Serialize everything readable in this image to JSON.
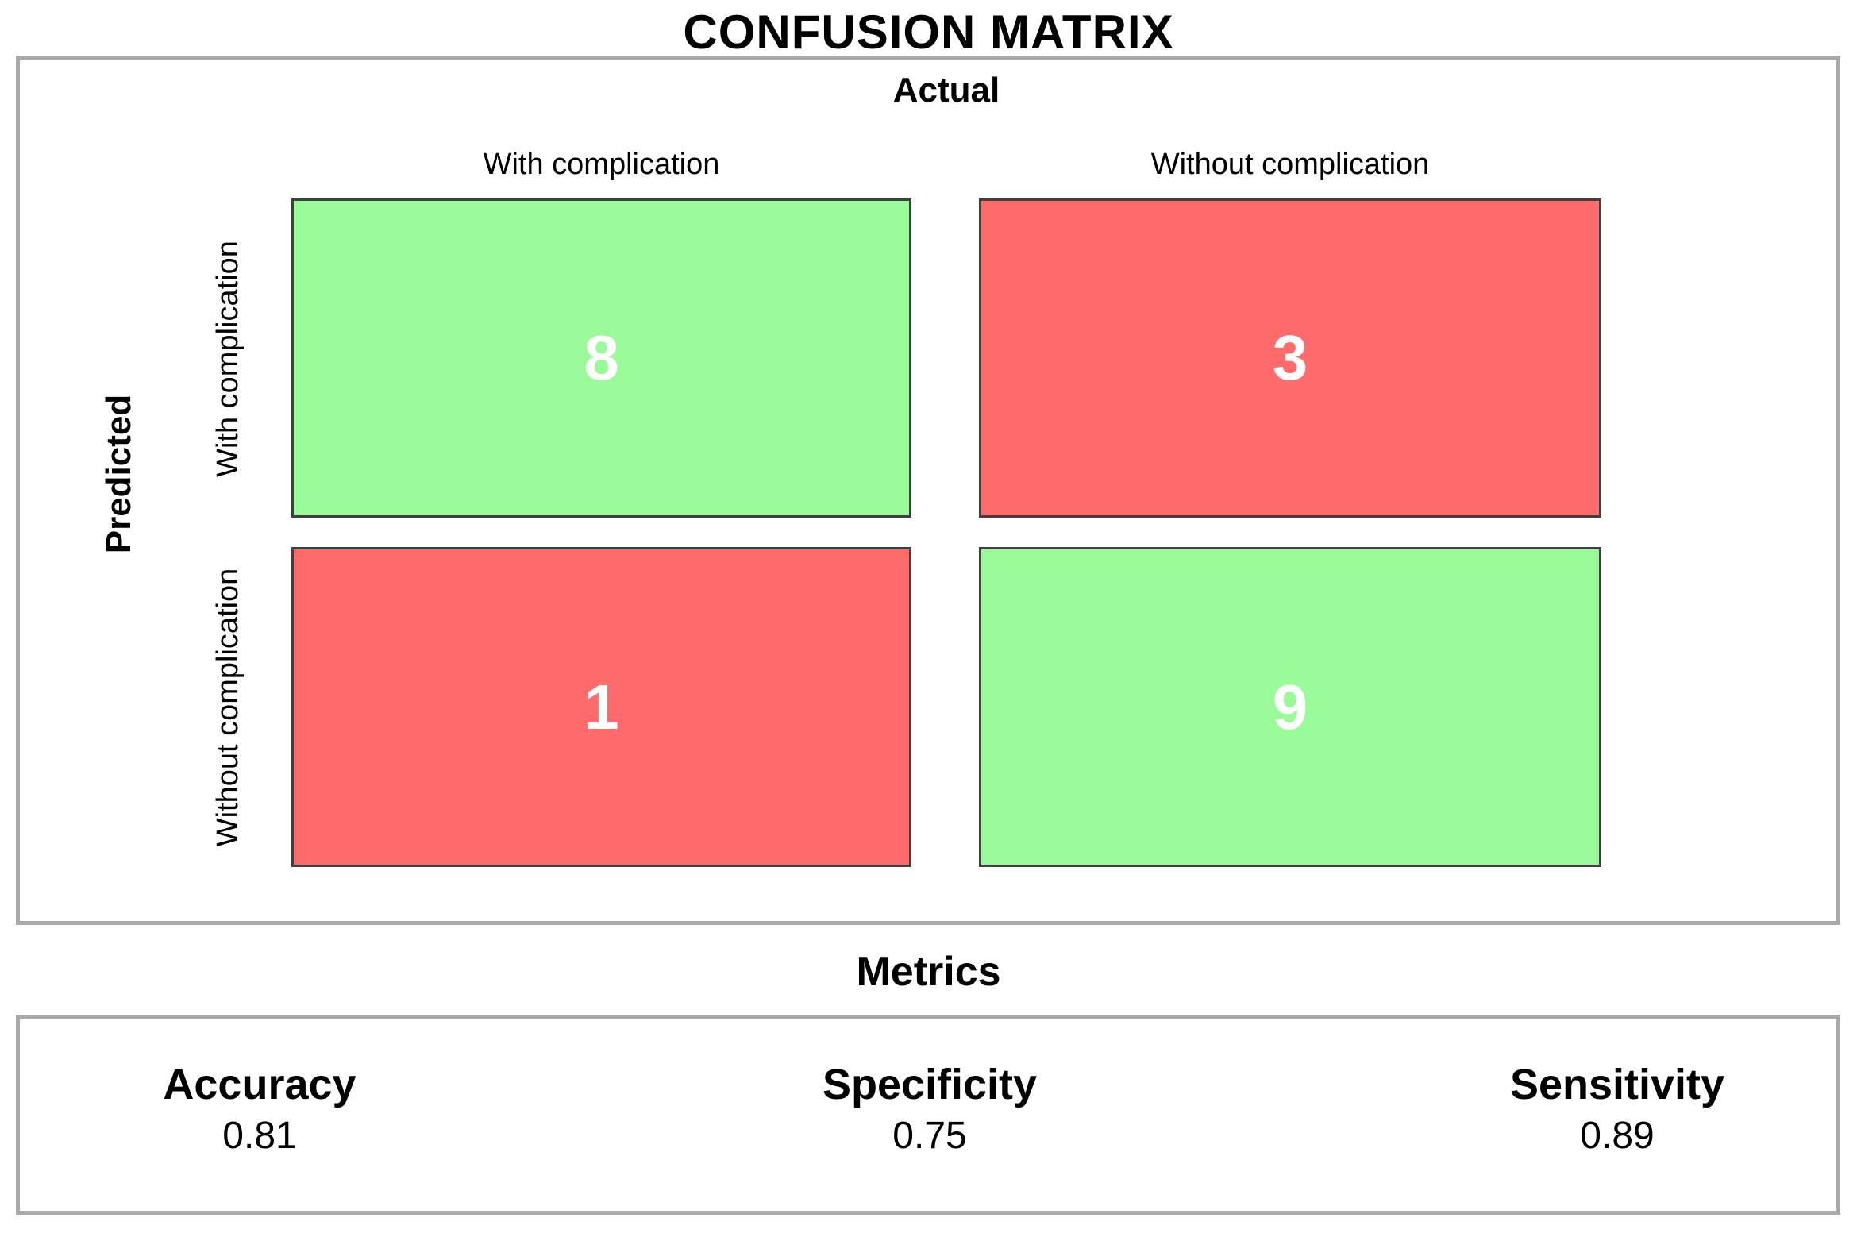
{
  "header": {
    "title": "CONFUSION MATRIX"
  },
  "matrix_panel": {
    "actual_label": "Actual",
    "predicted_label": "Predicted",
    "col_headers": [
      "With complication",
      "Without complication"
    ],
    "row_headers": [
      "With complication",
      "Without complication"
    ],
    "cells": {
      "tp": "8",
      "fp": "3",
      "fn": "1",
      "tn": "9"
    }
  },
  "metrics_panel": {
    "heading": "Metrics",
    "items": [
      {
        "label": "Accuracy",
        "value": "0.81"
      },
      {
        "label": "Specificity",
        "value": "0.75"
      },
      {
        "label": "Sensitivity",
        "value": "0.89"
      }
    ]
  },
  "colors": {
    "correct_cell": "#98FB98",
    "incorrect_cell": "#FF6B6B",
    "cell_border": "#404040",
    "panel_border": "#A9A9A9",
    "cell_text": "#FFFFFF"
  },
  "chart_data": {
    "type": "heatmap",
    "title": "CONFUSION MATRIX",
    "x_axis_label": "Actual",
    "y_axis_label": "Predicted",
    "x_categories": [
      "With complication",
      "Without complication"
    ],
    "y_categories": [
      "With complication",
      "Without complication"
    ],
    "matrix": [
      [
        8,
        3
      ],
      [
        1,
        9
      ]
    ],
    "cell_colors": [
      [
        "#98FB98",
        "#FF6B6B"
      ],
      [
        "#FF6B6B",
        "#98FB98"
      ]
    ],
    "legend_position": "none",
    "grid": false,
    "metrics": [
      {
        "label": "Accuracy",
        "value": 0.81
      },
      {
        "label": "Specificity",
        "value": 0.75
      },
      {
        "label": "Sensitivity",
        "value": 0.89
      }
    ]
  }
}
